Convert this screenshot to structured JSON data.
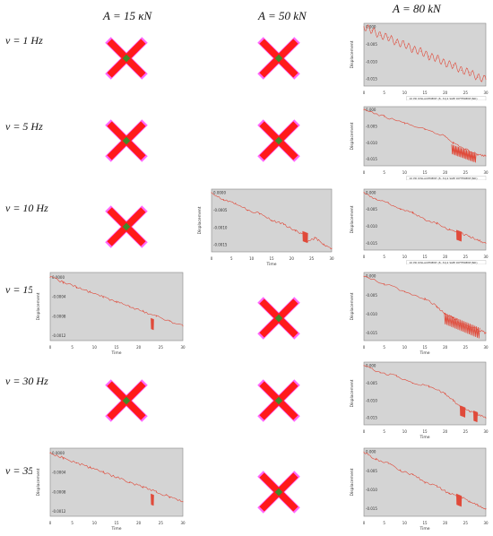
{
  "columns": [
    {
      "id": "a15",
      "label": "A = 15 κN"
    },
    {
      "id": "a50",
      "label": "A = 50 kN"
    },
    {
      "id": "a80",
      "label": "A = 80 kN"
    }
  ],
  "rows": [
    {
      "id": "v1",
      "label": "v = 1 Hz"
    },
    {
      "id": "v5",
      "label": "v = 5 Hz"
    },
    {
      "id": "v10",
      "label": "v = 10 Hz"
    },
    {
      "id": "v15",
      "label": "v = 15 Hz"
    },
    {
      "id": "v30",
      "label": "v = 30 Hz"
    },
    {
      "id": "v35",
      "label": "v = 35 Hz"
    }
  ],
  "colors": {
    "plot_background": "#d4d4d4",
    "trace": "#e04a3a",
    "cross_fill": "#ff1a1a",
    "cross_center": "#3f8a2a",
    "cross_halo": "#ff66ff"
  },
  "plot_labels": {
    "ylabel": "Displacement",
    "xlabel": "Time"
  },
  "grid": [
    {
      "row": "v1",
      "a15": "cross",
      "a50": "cross",
      "a80": "plot"
    },
    {
      "row": "v5",
      "a15": "cross",
      "a50": "cross",
      "a80": "plot"
    },
    {
      "row": "v10",
      "a15": "cross",
      "a50": "plot",
      "a80": "plot"
    },
    {
      "row": "v15",
      "a15": "plot",
      "a50": "cross",
      "a80": "plot"
    },
    {
      "row": "v30",
      "a15": "cross",
      "a50": "cross",
      "a80": "plot"
    },
    {
      "row": "v35",
      "a15": "plot",
      "a50": "cross",
      "a80": "plot"
    }
  ],
  "chart_data": [
    {
      "panel": "v1-A80",
      "type": "line",
      "xlabel": "Time",
      "ylabel": "Displacement",
      "xticks": [
        "0",
        "5",
        "10",
        "15",
        "20",
        "25",
        "30"
      ],
      "yticks": [
        "0.000",
        "-0.005",
        "-0.010",
        "-0.015"
      ],
      "xlim": [
        0,
        30
      ],
      "ylim": [
        -0.017,
        0.001
      ],
      "legend": "10 PD DISLACEMENT (8, 31)2 SIZE DIFFERENT(ND)",
      "pattern": "oscillating_decline",
      "x": [
        0,
        2,
        4,
        6,
        8,
        10,
        12,
        14,
        16,
        18,
        20,
        22,
        24,
        26,
        28,
        30
      ],
      "y": [
        0.0,
        -0.001,
        -0.0025,
        -0.003,
        -0.0045,
        -0.005,
        -0.0065,
        -0.007,
        -0.0085,
        -0.009,
        -0.0105,
        -0.011,
        -0.0125,
        -0.013,
        -0.0145,
        -0.015
      ]
    },
    {
      "panel": "v5-A80",
      "type": "line",
      "xlabel": "Time",
      "ylabel": "Displacement",
      "xticks": [
        "0",
        "5",
        "10",
        "15",
        "20",
        "25",
        "30"
      ],
      "yticks": [
        "0.000",
        "-0.005",
        "-0.010",
        "-0.015"
      ],
      "xlim": [
        0,
        30
      ],
      "ylim": [
        -0.017,
        0.001
      ],
      "legend": "10 PD DISLACEMENT (8, 31)2 SIZE DIFFERENT(ND)",
      "pattern": "decline_dense_oscillation_end",
      "x": [
        0,
        5,
        10,
        15,
        20,
        22,
        25,
        28,
        30
      ],
      "y": [
        0.0,
        -0.002,
        -0.004,
        -0.006,
        -0.008,
        -0.01,
        -0.012,
        -0.0135,
        -0.014
      ]
    },
    {
      "panel": "v10-A50",
      "type": "line",
      "xlabel": "Time",
      "ylabel": "Displacement",
      "xticks": [
        "0",
        "5",
        "10",
        "15",
        "20",
        "25",
        "30"
      ],
      "yticks": [
        "0.0000",
        "-0.0005",
        "-0.0010",
        "-0.0015"
      ],
      "xlim": [
        0,
        30
      ],
      "ylim": [
        -0.0017,
        0.0001
      ],
      "pattern": "decline_burst",
      "x": [
        0,
        3,
        6,
        9,
        12,
        15,
        18,
        21,
        23,
        24,
        26,
        28,
        30
      ],
      "y": [
        0.0,
        -0.0002,
        -0.0003,
        -0.0005,
        -0.0006,
        -0.0008,
        -0.0009,
        -0.0011,
        -0.0012,
        -0.0014,
        -0.0013,
        -0.0015,
        -0.0016
      ]
    },
    {
      "panel": "v10-A80",
      "type": "line",
      "xlabel": "Time",
      "ylabel": "Displacement",
      "xticks": [
        "0",
        "5",
        "10",
        "15",
        "20",
        "25",
        "30"
      ],
      "yticks": [
        "0.000",
        "-0.005",
        "-0.010",
        "-0.015"
      ],
      "xlim": [
        0,
        30
      ],
      "ylim": [
        -0.017,
        0.001
      ],
      "legend": "10 PD DISLACEMENT (8, 31)2 SIZE DIFFERENT(ND)",
      "pattern": "decline_burst",
      "x": [
        0,
        3,
        6,
        9,
        12,
        15,
        18,
        21,
        24,
        26,
        28,
        30
      ],
      "y": [
        0.0,
        -0.002,
        -0.003,
        -0.005,
        -0.006,
        -0.008,
        -0.009,
        -0.011,
        -0.012,
        -0.013,
        -0.014,
        -0.015
      ]
    },
    {
      "panel": "v15-A15",
      "type": "line",
      "xlabel": "Time",
      "ylabel": "Displacement",
      "xticks": [
        "0",
        "5",
        "10",
        "15",
        "20",
        "25",
        "30"
      ],
      "yticks": [
        "0.0000",
        "-0.0004",
        "-0.0008",
        "-0.0012"
      ],
      "xlim": [
        0,
        30
      ],
      "ylim": [
        -0.0013,
        0.0001
      ],
      "pattern": "linear_decline_spike",
      "x": [
        0,
        3,
        6,
        9,
        12,
        15,
        18,
        21,
        24,
        27,
        30
      ],
      "y": [
        0.0,
        -0.0001,
        -0.0002,
        -0.0003,
        -0.0004,
        -0.0005,
        -0.0006,
        -0.0007,
        -0.0008,
        -0.0009,
        -0.001
      ]
    },
    {
      "panel": "v15-A80",
      "type": "line",
      "xlabel": "Time",
      "ylabel": "Displacement",
      "xticks": [
        "0",
        "5",
        "10",
        "15",
        "20",
        "25",
        "30"
      ],
      "yticks": [
        "0.000",
        "-0.005",
        "-0.010",
        "-0.015"
      ],
      "xlim": [
        0,
        30
      ],
      "ylim": [
        -0.017,
        0.001
      ],
      "pattern": "decline_dense_oscillation",
      "x": [
        0,
        5,
        10,
        15,
        18,
        20,
        22,
        25,
        28,
        30
      ],
      "y": [
        0.0,
        -0.002,
        -0.004,
        -0.006,
        -0.008,
        -0.01,
        -0.011,
        -0.013,
        -0.014,
        -0.015
      ]
    },
    {
      "panel": "v30-A80",
      "type": "line",
      "xlabel": "Time",
      "ylabel": "Displacement",
      "xticks": [
        "0",
        "5",
        "10",
        "15",
        "20",
        "25",
        "30"
      ],
      "yticks": [
        "0.000",
        "-0.005",
        "-0.010",
        "-0.015"
      ],
      "xlim": [
        0,
        30
      ],
      "ylim": [
        -0.017,
        0.001
      ],
      "pattern": "decline_bursts",
      "x": [
        0,
        4,
        8,
        12,
        16,
        20,
        22,
        24,
        26,
        28,
        30
      ],
      "y": [
        0.0,
        -0.002,
        -0.003,
        -0.005,
        -0.006,
        -0.008,
        -0.01,
        -0.012,
        -0.013,
        -0.014,
        -0.015
      ]
    },
    {
      "panel": "v35-A15",
      "type": "line",
      "xlabel": "Time",
      "ylabel": "Displacement",
      "xticks": [
        "0",
        "5",
        "10",
        "15",
        "20",
        "25",
        "30"
      ],
      "yticks": [
        "0.0000",
        "-0.0004",
        "-0.0008",
        "-0.0012"
      ],
      "xlim": [
        0,
        30
      ],
      "ylim": [
        -0.0013,
        0.0001
      ],
      "pattern": "linear_decline_spike",
      "x": [
        0,
        3,
        6,
        9,
        12,
        15,
        18,
        21,
        24,
        27,
        30
      ],
      "y": [
        0.0,
        -0.0001,
        -0.0002,
        -0.0003,
        -0.0004,
        -0.0005,
        -0.0006,
        -0.0007,
        -0.0008,
        -0.0009,
        -0.001
      ]
    },
    {
      "panel": "v35-A80",
      "type": "line",
      "xlabel": "Time",
      "ylabel": "Displacement",
      "xticks": [
        "0",
        "5",
        "10",
        "15",
        "20",
        "25",
        "30"
      ],
      "yticks": [
        "0.000",
        "-0.005",
        "-0.010",
        "-0.015"
      ],
      "xlim": [
        0,
        30
      ],
      "ylim": [
        -0.017,
        0.001
      ],
      "pattern": "decline_burst",
      "x": [
        0,
        3,
        6,
        9,
        12,
        15,
        18,
        21,
        24,
        26,
        28,
        30
      ],
      "y": [
        0.0,
        -0.002,
        -0.003,
        -0.005,
        -0.006,
        -0.008,
        -0.009,
        -0.011,
        -0.012,
        -0.013,
        -0.014,
        -0.015
      ]
    }
  ]
}
